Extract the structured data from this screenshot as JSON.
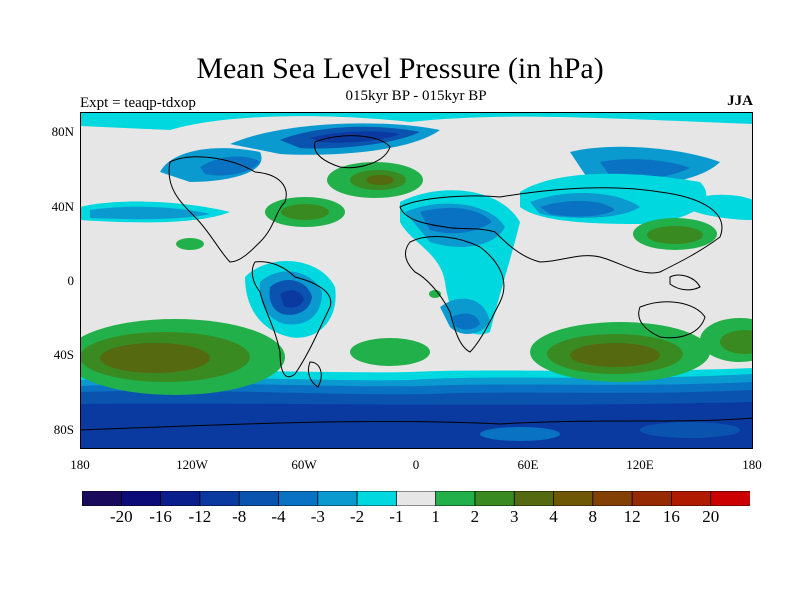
{
  "title": "Mean Sea Level Pressure (in hPa)",
  "subtitle": "015kyr BP - 015kyr BP",
  "experiment": "Expt = teaqp-tdxop",
  "season": "JJA",
  "lat_ticks": [
    "80N",
    "40N",
    "0",
    "40S",
    "80S"
  ],
  "lon_ticks": [
    "180",
    "120W",
    "60W",
    "0",
    "60E",
    "120E",
    "180"
  ],
  "colorbar": {
    "colors": [
      "#1a0a5c",
      "#0c0c78",
      "#0a1e8c",
      "#0a3aa0",
      "#0a54b0",
      "#0a72c2",
      "#0a9ad0",
      "#00d8e0",
      "#e6e6e6",
      "#22b04a",
      "#3a8a22",
      "#556a10",
      "#6e5806",
      "#824004",
      "#962a02",
      "#b01a00",
      "#cc0000"
    ],
    "labels": [
      "-20",
      "-16",
      "-12",
      "-8",
      "-4",
      "-3",
      "-2",
      "-1",
      "1",
      "2",
      "3",
      "4",
      "8",
      "12",
      "16",
      "20"
    ]
  },
  "chart_data": {
    "type": "heatmap",
    "title": "Mean Sea Level Pressure (in hPa)",
    "subtitle": "015kyr BP - 015kyr BP",
    "x_range": [
      -180,
      180
    ],
    "y_range": [
      -90,
      90
    ],
    "levels": [
      -20,
      -16,
      -12,
      -8,
      -4,
      -3,
      -2,
      -1,
      1,
      2,
      3,
      4,
      8,
      12,
      16,
      20
    ],
    "features": [
      {
        "region": "Southern Ocean band",
        "lon": [
          -180,
          180
        ],
        "lat": [
          -90,
          -55
        ],
        "value": -6
      },
      {
        "region": "South Pacific high",
        "lon": -130,
        "lat": -40,
        "value": 4
      },
      {
        "region": "South Indian Ocean high",
        "lon": 110,
        "lat": -40,
        "value": 4
      },
      {
        "region": "South Atlantic high",
        "lon": -10,
        "lat": -38,
        "value": 2
      },
      {
        "region": "North Atlantic (Azores)",
        "lon": -25,
        "lat": 52,
        "value": 3
      },
      {
        "region": "Western North Atlantic",
        "lon": -65,
        "lat": 35,
        "value": 3
      },
      {
        "region": "West Pacific",
        "lon": 135,
        "lat": 25,
        "value": 3
      },
      {
        "region": "Arctic",
        "lon": -60,
        "lat": 82,
        "value": -4
      },
      {
        "region": "South America interior",
        "lon": -62,
        "lat": -10,
        "value": -4
      },
      {
        "region": "North Africa / Mediterranean",
        "lon": 20,
        "lat": 30,
        "value": -3
      },
      {
        "region": "Southern Africa",
        "lon": 25,
        "lat": -25,
        "value": -3
      }
    ]
  }
}
